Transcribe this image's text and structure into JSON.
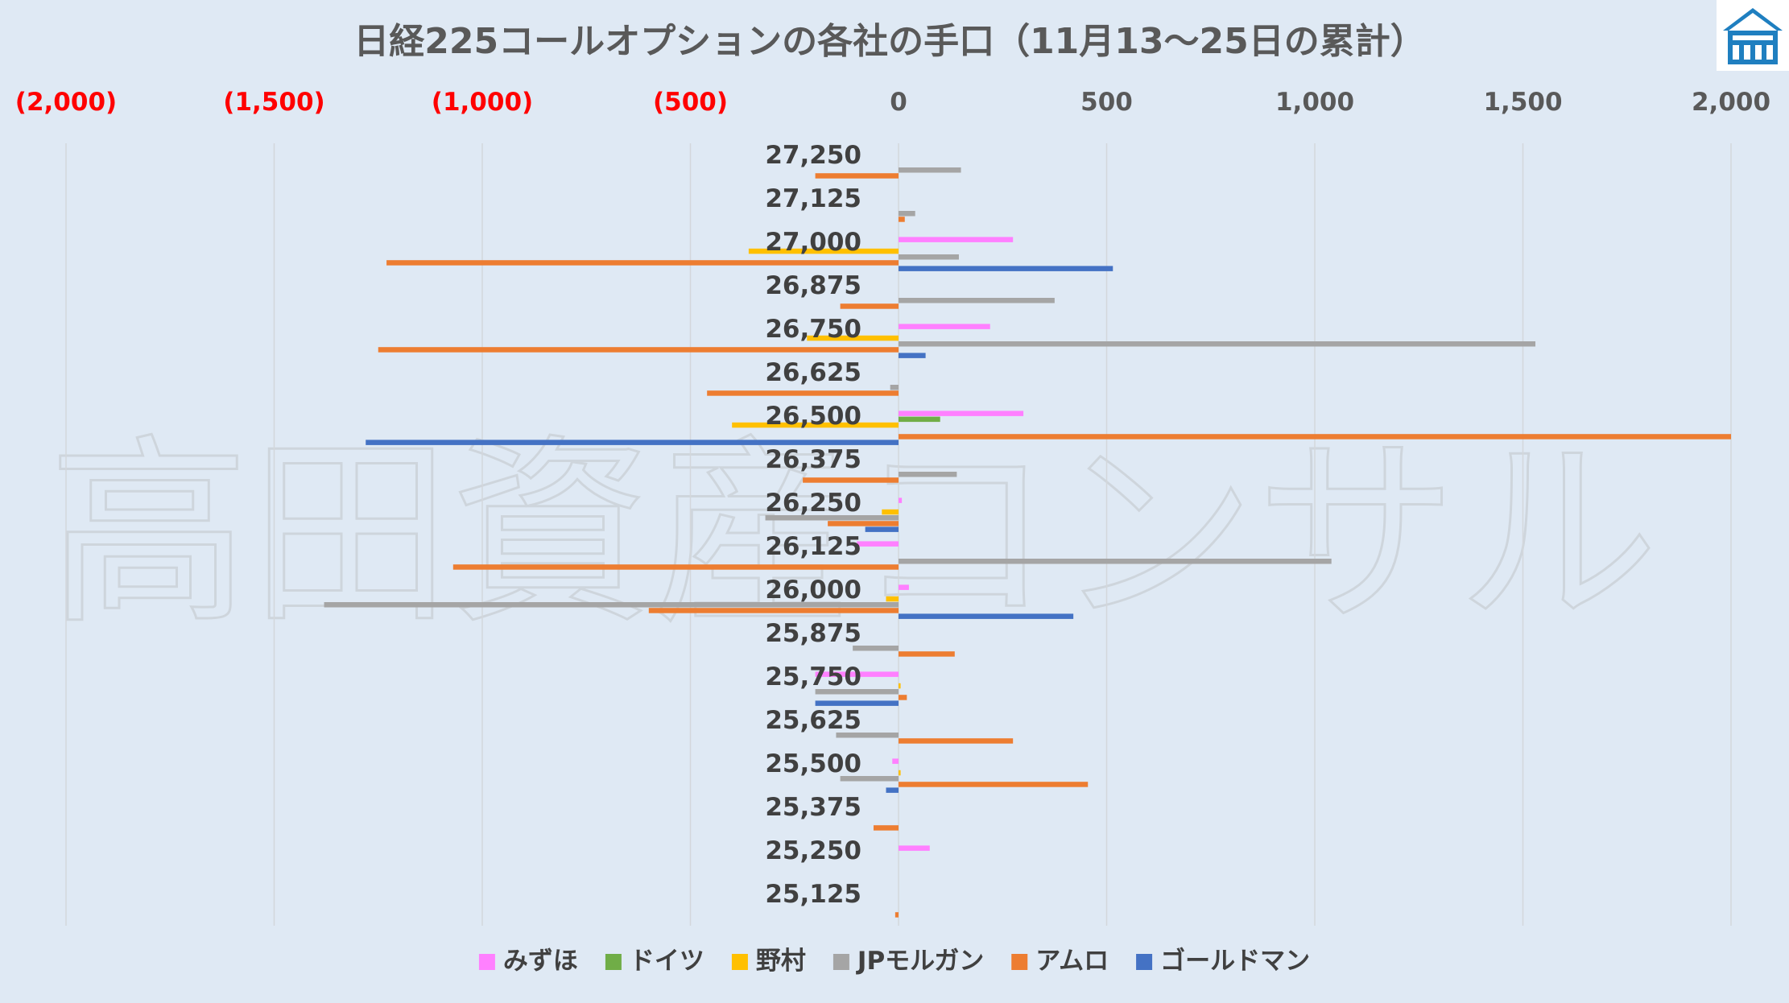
{
  "chart_data": {
    "type": "bar",
    "orientation": "horizontal",
    "title": "日経225コールオプションの各社の手口（11月13～25日の累計）",
    "watermark": "高田資産コンサル",
    "xlim": [
      -2000,
      2000
    ],
    "x_ticks": [
      {
        "value": -2000,
        "label": "(2,000)"
      },
      {
        "value": -1500,
        "label": "(1,500)"
      },
      {
        "value": -1000,
        "label": "(1,000)"
      },
      {
        "value": -500,
        "label": "(500)"
      },
      {
        "value": 0,
        "label": "0"
      },
      {
        "value": 500,
        "label": "500"
      },
      {
        "value": 1000,
        "label": "1,000"
      },
      {
        "value": 1500,
        "label": "1,500"
      },
      {
        "value": 2000,
        "label": "2,000"
      }
    ],
    "negative_tick_color": "#ff0000",
    "positive_tick_color": "#595959",
    "grid": true,
    "legend_position": "bottom",
    "categories": [
      "27,250",
      "27,125",
      "27,000",
      "26,875",
      "26,750",
      "26,625",
      "26,500",
      "26,375",
      "26,250",
      "26,125",
      "26,000",
      "25,875",
      "25,750",
      "25,625",
      "25,500",
      "25,375",
      "25,250",
      "25,125"
    ],
    "series": [
      {
        "name": "みずほ",
        "color": "#ff80ff",
        "values": [
          0,
          0,
          275,
          0,
          220,
          0,
          300,
          0,
          8,
          -100,
          25,
          0,
          -200,
          0,
          -15,
          0,
          75,
          0
        ]
      },
      {
        "name": "ドイツ",
        "color": "#70ad47",
        "values": [
          0,
          0,
          0,
          0,
          0,
          0,
          100,
          0,
          0,
          0,
          0,
          0,
          0,
          0,
          0,
          0,
          0,
          0
        ]
      },
      {
        "name": "野村",
        "color": "#ffc000",
        "values": [
          0,
          0,
          -360,
          0,
          -220,
          0,
          -400,
          0,
          -40,
          0,
          -30,
          0,
          5,
          0,
          5,
          0,
          0,
          0
        ]
      },
      {
        "name": "JPモルガン",
        "color": "#a5a5a5",
        "values": [
          150,
          40,
          145,
          375,
          1530,
          -20,
          0,
          140,
          -320,
          1040,
          -1380,
          -110,
          -200,
          -150,
          -140,
          0,
          0,
          0
        ]
      },
      {
        "name": "アムロ",
        "color": "#ed7d31",
        "values": [
          -200,
          15,
          -1230,
          -140,
          -1250,
          -460,
          2000,
          -230,
          -170,
          -1070,
          -600,
          135,
          20,
          275,
          455,
          -60,
          0,
          -8
        ]
      },
      {
        "name": "ゴールドマン",
        "color": "#4472c4",
        "values": [
          0,
          0,
          515,
          0,
          65,
          0,
          -1280,
          0,
          -80,
          0,
          420,
          0,
          -200,
          0,
          -30,
          0,
          0,
          0
        ]
      }
    ]
  }
}
